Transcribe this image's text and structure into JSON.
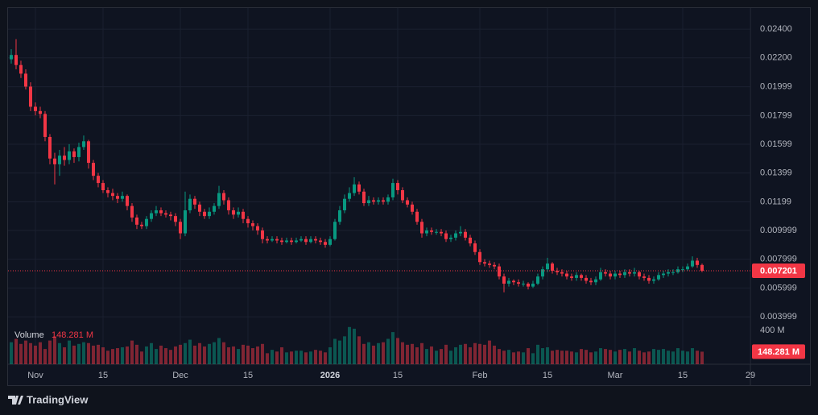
{
  "chart_data": {
    "type": "candlestick",
    "up_color": "#089981",
    "down_color": "#f23645",
    "grid": true,
    "xlim": [
      -7.33,
      148
    ],
    "xticks": [
      {
        "value": 0,
        "label": "Nov"
      },
      {
        "value": 14,
        "label": "15"
      },
      {
        "value": 30,
        "label": "Dec"
      },
      {
        "value": 44,
        "label": "15"
      },
      {
        "value": 61,
        "label": "2026"
      },
      {
        "value": 75,
        "label": "15"
      },
      {
        "value": 92,
        "label": "Feb"
      },
      {
        "value": 106,
        "label": "15"
      },
      {
        "value": 120,
        "label": "Mar"
      },
      {
        "value": 134,
        "label": "15"
      },
      {
        "value": 148,
        "label": "29"
      }
    ],
    "ylim": [
      0.0007,
      0.02546
    ],
    "yticks": [
      {
        "value": 0.024,
        "label": "0.02400"
      },
      {
        "value": 0.022,
        "label": "0.02200"
      },
      0.01999,
      0.01799,
      0.01599,
      0.01399,
      0.01199,
      0.009999,
      0.007999,
      0.005999,
      0.003999
    ],
    "x": [
      -5,
      -4,
      -3,
      -2,
      -1,
      0,
      1,
      2,
      3,
      4,
      5,
      6,
      7,
      8,
      9,
      10,
      11,
      12,
      13,
      14,
      15,
      16,
      17,
      18,
      19,
      20,
      21,
      22,
      23,
      24,
      25,
      26,
      27,
      28,
      29,
      30,
      31,
      32,
      33,
      34,
      35,
      36,
      37,
      38,
      39,
      40,
      41,
      42,
      43,
      44,
      45,
      46,
      47,
      48,
      49,
      50,
      51,
      52,
      53,
      54,
      55,
      56,
      57,
      58,
      59,
      60,
      61,
      62,
      63,
      64,
      65,
      66,
      67,
      68,
      69,
      70,
      71,
      72,
      73,
      74,
      75,
      76,
      77,
      78,
      79,
      80,
      81,
      82,
      83,
      84,
      85,
      86,
      87,
      88,
      89,
      90,
      91,
      92,
      93,
      94,
      95,
      96,
      97,
      98,
      99,
      100,
      101,
      102,
      103,
      104,
      105,
      106,
      107,
      108,
      109,
      110,
      111,
      112,
      113,
      114,
      115,
      116,
      117,
      118,
      119,
      120,
      121,
      122,
      123,
      124,
      125,
      126,
      127,
      128,
      129,
      130,
      131,
      132,
      133,
      134,
      135,
      136,
      137,
      138
    ],
    "open": [
      0.0219,
      0.0222,
      0.0215,
      0.0209,
      0.02,
      0.0186,
      0.0183,
      0.0181,
      0.0165,
      0.015,
      0.0146,
      0.0152,
      0.0149,
      0.0155,
      0.0151,
      0.0158,
      0.0162,
      0.0147,
      0.0138,
      0.0133,
      0.0128,
      0.0126,
      0.0124,
      0.0122,
      0.0124,
      0.0117,
      0.0109,
      0.0104,
      0.0103,
      0.0108,
      0.0112,
      0.0114,
      0.0112,
      0.0111,
      0.011,
      0.0106,
      0.0098,
      0.0114,
      0.0122,
      0.0118,
      0.0113,
      0.011,
      0.0113,
      0.0117,
      0.0126,
      0.0121,
      0.0114,
      0.0111,
      0.0113,
      0.0108,
      0.0105,
      0.0103,
      0.01,
      0.0094,
      0.0093,
      0.0094,
      0.0093,
      0.0092,
      0.0093,
      0.0092,
      0.0093,
      0.0094,
      0.0092,
      0.0094,
      0.0093,
      0.0092,
      0.009,
      0.0094,
      0.0106,
      0.0114,
      0.0122,
      0.0126,
      0.0132,
      0.0127,
      0.0119,
      0.0121,
      0.012,
      0.0121,
      0.012,
      0.0123,
      0.0133,
      0.0128,
      0.0121,
      0.0118,
      0.0113,
      0.0106,
      0.0098,
      0.01,
      0.0099,
      0.0099,
      0.0098,
      0.0094,
      0.0095,
      0.0098,
      0.0099,
      0.0095,
      0.0091,
      0.0085,
      0.0078,
      0.0077,
      0.0076,
      0.0075,
      0.0068,
      0.0063,
      0.0065,
      0.0064,
      0.0063,
      0.0063,
      0.0061,
      0.0063,
      0.0068,
      0.0073,
      0.0077,
      0.0072,
      0.0071,
      0.007,
      0.0068,
      0.0067,
      0.0069,
      0.0067,
      0.0065,
      0.0064,
      0.0066,
      0.0071,
      0.007,
      0.0068,
      0.007,
      0.0069,
      0.0071,
      0.007,
      0.0071,
      0.0068,
      0.0067,
      0.0065,
      0.0066,
      0.0069,
      0.007,
      0.0071,
      0.0071,
      0.0073,
      0.0073,
      0.0075,
      0.0079,
      0.0076
    ],
    "high": [
      0.0226,
      0.0233,
      0.0218,
      0.0212,
      0.0203,
      0.0189,
      0.0186,
      0.0183,
      0.0167,
      0.0154,
      0.0156,
      0.0158,
      0.016,
      0.0157,
      0.0161,
      0.0166,
      0.0163,
      0.0149,
      0.014,
      0.0135,
      0.013,
      0.0129,
      0.0126,
      0.0127,
      0.0125,
      0.0119,
      0.0111,
      0.0106,
      0.011,
      0.0114,
      0.0117,
      0.0116,
      0.0114,
      0.0113,
      0.0112,
      0.0108,
      0.0127,
      0.0125,
      0.0124,
      0.012,
      0.0115,
      0.0116,
      0.0119,
      0.0131,
      0.0128,
      0.0123,
      0.0116,
      0.0116,
      0.0115,
      0.011,
      0.0107,
      0.0105,
      0.0102,
      0.0096,
      0.0096,
      0.0096,
      0.0095,
      0.0095,
      0.0095,
      0.0095,
      0.0096,
      0.0096,
      0.0096,
      0.0096,
      0.0095,
      0.0094,
      0.0096,
      0.0108,
      0.0117,
      0.0125,
      0.013,
      0.0137,
      0.0134,
      0.0129,
      0.0124,
      0.0123,
      0.0123,
      0.0123,
      0.0125,
      0.0136,
      0.0135,
      0.013,
      0.0123,
      0.012,
      0.0115,
      0.0108,
      0.0102,
      0.0102,
      0.0101,
      0.0101,
      0.01,
      0.0097,
      0.01,
      0.0103,
      0.0101,
      0.0097,
      0.0093,
      0.0087,
      0.008,
      0.0079,
      0.0078,
      0.0077,
      0.007,
      0.0067,
      0.0066,
      0.0066,
      0.0065,
      0.0064,
      0.0065,
      0.007,
      0.0075,
      0.0081,
      0.0078,
      0.0074,
      0.0073,
      0.0072,
      0.007,
      0.0071,
      0.007,
      0.0069,
      0.0067,
      0.0068,
      0.0074,
      0.0073,
      0.0072,
      0.0072,
      0.0072,
      0.0073,
      0.0073,
      0.0074,
      0.0072,
      0.007,
      0.0069,
      0.0068,
      0.0071,
      0.0072,
      0.0073,
      0.0073,
      0.0075,
      0.0075,
      0.0077,
      0.0082,
      0.0081,
      0.0077
    ],
    "low": [
      0.0216,
      0.0212,
      0.0206,
      0.0198,
      0.0183,
      0.018,
      0.0178,
      0.0162,
      0.0146,
      0.0132,
      0.0138,
      0.0145,
      0.0146,
      0.0147,
      0.0148,
      0.0156,
      0.0143,
      0.0135,
      0.013,
      0.0126,
      0.0123,
      0.0121,
      0.0119,
      0.012,
      0.0114,
      0.0106,
      0.0101,
      0.0101,
      0.0101,
      0.0106,
      0.011,
      0.011,
      0.0109,
      0.0107,
      0.0103,
      0.0094,
      0.0096,
      0.0112,
      0.0115,
      0.011,
      0.0108,
      0.0108,
      0.0111,
      0.0115,
      0.0118,
      0.0111,
      0.0108,
      0.0109,
      0.0105,
      0.0102,
      0.01,
      0.0097,
      0.0091,
      0.0091,
      0.0092,
      0.0091,
      0.009,
      0.0091,
      0.009,
      0.0091,
      0.0092,
      0.009,
      0.0091,
      0.0091,
      0.009,
      0.0088,
      0.0089,
      0.0093,
      0.0104,
      0.0112,
      0.012,
      0.0124,
      0.0125,
      0.0117,
      0.0117,
      0.0118,
      0.0118,
      0.0118,
      0.0118,
      0.0121,
      0.0125,
      0.0119,
      0.0116,
      0.0111,
      0.0104,
      0.0095,
      0.0096,
      0.0097,
      0.0097,
      0.0096,
      0.0092,
      0.0092,
      0.0093,
      0.0096,
      0.0093,
      0.0089,
      0.0083,
      0.0076,
      0.0075,
      0.0074,
      0.0073,
      0.0066,
      0.0057,
      0.0061,
      0.0062,
      0.0061,
      0.0061,
      0.0059,
      0.006,
      0.0062,
      0.0066,
      0.0071,
      0.007,
      0.0069,
      0.0068,
      0.0066,
      0.0065,
      0.0065,
      0.0065,
      0.0063,
      0.0062,
      0.0062,
      0.0065,
      0.0068,
      0.0066,
      0.0066,
      0.0067,
      0.0067,
      0.0068,
      0.0068,
      0.0066,
      0.0065,
      0.0063,
      0.0063,
      0.0065,
      0.0067,
      0.0068,
      0.0069,
      0.007,
      0.0071,
      0.0072,
      0.0074,
      0.0074,
      0.0071
    ],
    "close": [
      0.0222,
      0.0215,
      0.0209,
      0.02,
      0.0186,
      0.0183,
      0.0181,
      0.0165,
      0.015,
      0.0146,
      0.0152,
      0.0149,
      0.0155,
      0.0151,
      0.0158,
      0.0162,
      0.0147,
      0.0138,
      0.0133,
      0.0128,
      0.0126,
      0.0124,
      0.0122,
      0.0124,
      0.0117,
      0.0109,
      0.0104,
      0.0103,
      0.0108,
      0.0112,
      0.0114,
      0.0112,
      0.0111,
      0.011,
      0.0106,
      0.0098,
      0.0114,
      0.0122,
      0.0118,
      0.0113,
      0.011,
      0.0113,
      0.0117,
      0.0126,
      0.0121,
      0.0114,
      0.0111,
      0.0113,
      0.0108,
      0.0105,
      0.0103,
      0.01,
      0.0094,
      0.0093,
      0.0094,
      0.0093,
      0.0092,
      0.0093,
      0.0092,
      0.0093,
      0.0094,
      0.0092,
      0.0094,
      0.0093,
      0.0092,
      0.009,
      0.0094,
      0.0106,
      0.0114,
      0.0122,
      0.0126,
      0.0132,
      0.0127,
      0.0119,
      0.0121,
      0.012,
      0.0121,
      0.012,
      0.0123,
      0.0133,
      0.0128,
      0.0121,
      0.0118,
      0.0113,
      0.0106,
      0.0098,
      0.01,
      0.0099,
      0.0099,
      0.0098,
      0.0094,
      0.0095,
      0.0098,
      0.0099,
      0.0095,
      0.0091,
      0.0085,
      0.0078,
      0.0077,
      0.0076,
      0.0075,
      0.0068,
      0.0063,
      0.0065,
      0.0064,
      0.0063,
      0.0063,
      0.0061,
      0.0063,
      0.0068,
      0.0073,
      0.0077,
      0.0072,
      0.0071,
      0.007,
      0.0068,
      0.0067,
      0.0069,
      0.0067,
      0.0065,
      0.0064,
      0.0066,
      0.0071,
      0.007,
      0.0068,
      0.007,
      0.0069,
      0.0071,
      0.007,
      0.0071,
      0.0068,
      0.0067,
      0.0065,
      0.0066,
      0.0069,
      0.007,
      0.0071,
      0.0071,
      0.0073,
      0.0073,
      0.0075,
      0.0079,
      0.0076,
      0.007201
    ],
    "volume": {
      "name": "Volume",
      "ylim": [
        0,
        500
      ],
      "yticks": [
        {
          "value": 400,
          "label": "400 M"
        }
      ],
      "last_value_label": "148.281 M",
      "values": [
        260,
        300,
        240,
        280,
        250,
        220,
        260,
        180,
        280,
        330,
        250,
        200,
        280,
        220,
        240,
        260,
        250,
        220,
        230,
        200,
        160,
        180,
        190,
        200,
        210,
        280,
        230,
        150,
        210,
        250,
        180,
        220,
        190,
        170,
        210,
        230,
        250,
        290,
        220,
        250,
        210,
        240,
        260,
        310,
        260,
        200,
        210,
        180,
        230,
        220,
        190,
        210,
        240,
        130,
        170,
        150,
        200,
        140,
        150,
        160,
        160,
        140,
        150,
        170,
        160,
        140,
        200,
        300,
        280,
        330,
        440,
        420,
        330,
        240,
        260,
        220,
        250,
        260,
        300,
        380,
        310,
        260,
        230,
        240,
        200,
        250,
        180,
        210,
        160,
        180,
        230,
        160,
        200,
        230,
        240,
        200,
        250,
        240,
        230,
        280,
        220,
        180,
        160,
        170,
        140,
        150,
        140,
        190,
        130,
        230,
        190,
        200,
        160,
        170,
        160,
        160,
        150,
        140,
        180,
        170,
        140,
        150,
        190,
        180,
        170,
        150,
        170,
        180,
        150,
        190,
        160,
        140,
        150,
        180,
        170,
        180,
        160,
        150,
        190,
        160,
        150,
        190,
        160,
        148.281
      ]
    }
  },
  "footer": {
    "logo_text": "TradingView"
  }
}
